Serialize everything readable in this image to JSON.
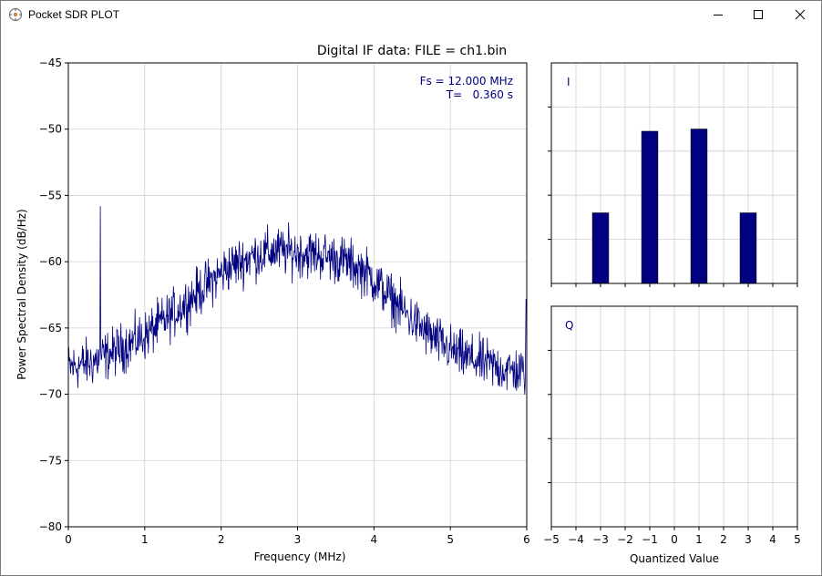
{
  "window": {
    "title": "Pocket SDR PLOT",
    "icon": "pocket-sdr-app-icon",
    "controls": [
      "minimize-icon",
      "maximize-icon",
      "close-icon"
    ]
  },
  "colors": {
    "line": "#000080",
    "bar": "#000080",
    "grid": "#d0d0d0",
    "annotation": "#000080"
  },
  "figure": {
    "title": "Digital IF data: FILE = ch1.bin",
    "fs_label": "Fs = 12.000 MHz",
    "t_label": "T=   0.360 s"
  },
  "chart_data": [
    {
      "type": "line",
      "name": "psd",
      "xlabel": "Frequency (MHz)",
      "ylabel": "Power Spectral Density (dB/Hz)",
      "xlim": [
        0,
        6
      ],
      "ylim": [
        -80,
        -45
      ],
      "xticks": [
        "0",
        "1",
        "2",
        "3",
        "4",
        "5",
        "6"
      ],
      "yticks": [
        "−45",
        "−50",
        "−55",
        "−60",
        "−65",
        "−70",
        "−75",
        "−80"
      ],
      "grid": true,
      "envelope": {
        "x": [
          0,
          0.3,
          0.6,
          1.0,
          1.4,
          1.8,
          2.1,
          2.4,
          2.7,
          3.0,
          3.3,
          3.6,
          3.9,
          4.2,
          4.5,
          4.8,
          5.1,
          5.4,
          5.7,
          5.98
        ],
        "y": [
          -68,
          -67.6,
          -66.8,
          -65.6,
          -63.8,
          -61.8,
          -60.4,
          -59.6,
          -59.2,
          -59.3,
          -59.5,
          -59.9,
          -60.8,
          -62.6,
          -64.4,
          -65.9,
          -67,
          -67.6,
          -68.1,
          -68.4
        ]
      },
      "spike": {
        "x": 0.42,
        "y": -55.8
      },
      "noise_amplitude_db": 1.4
    },
    {
      "type": "bar",
      "name": "I",
      "label": "I",
      "categories": [
        -3,
        -1,
        1,
        3
      ],
      "values": [
        0.32,
        0.69,
        0.7,
        0.32
      ],
      "xlim": [
        -5,
        5
      ],
      "ylim": [
        0,
        1
      ],
      "grid": true
    },
    {
      "type": "bar",
      "name": "Q",
      "label": "Q",
      "categories": [
        -3,
        -1,
        1,
        3
      ],
      "values": [
        0,
        0,
        0,
        0
      ],
      "xlim": [
        -5,
        5
      ],
      "ylim": [
        0,
        1
      ],
      "xlabel": "Quantized Value",
      "xticks": [
        "−5",
        "−4",
        "−3",
        "−2",
        "−1",
        "0",
        "1",
        "2",
        "3",
        "4",
        "5"
      ],
      "grid": true
    }
  ]
}
